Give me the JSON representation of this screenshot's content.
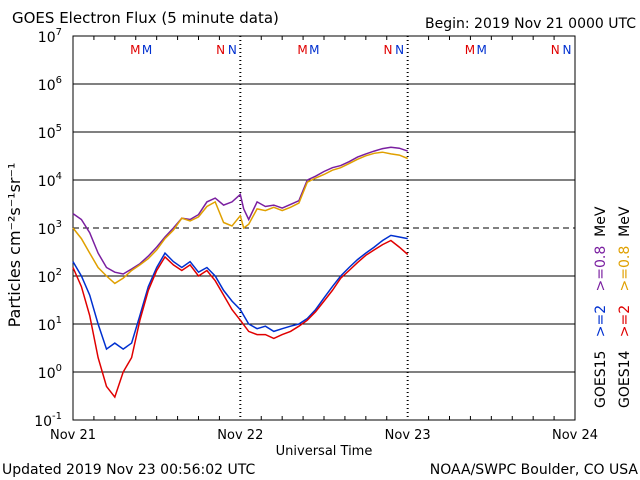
{
  "chart_data": {
    "type": "line",
    "title": "GOES Electron Flux (5 minute data)",
    "begin_label": "Begin: 2019 Nov 21 0000 UTC",
    "xlabel": "Universal Time",
    "ylabel": "Particles cm⁻²s⁻¹sr⁻¹",
    "y_scale": "log",
    "ylim": [
      0.1,
      10000000
    ],
    "y_ticks": [
      {
        "mant": "10",
        "exp": "7",
        "value": 10000000
      },
      {
        "mant": "10",
        "exp": "6",
        "value": 1000000
      },
      {
        "mant": "10",
        "exp": "5",
        "value": 100000
      },
      {
        "mant": "10",
        "exp": "4",
        "value": 10000
      },
      {
        "mant": "10",
        "exp": "3",
        "value": 1000
      },
      {
        "mant": "10",
        "exp": "2",
        "value": 100
      },
      {
        "mant": "10",
        "exp": "1",
        "value": 10
      },
      {
        "mant": "10",
        "exp": "0",
        "value": 1
      },
      {
        "mant": "10",
        "exp": "-1",
        "value": 0.1
      }
    ],
    "x_ticks": [
      {
        "label": "Nov 21",
        "day": 0
      },
      {
        "label": "Nov 22",
        "day": 1
      },
      {
        "label": "Nov 23",
        "day": 2
      },
      {
        "label": "Nov 24",
        "day": 3
      }
    ],
    "xlim": [
      0,
      3
    ],
    "threshold_lines": [
      {
        "value": 1000,
        "style": "dashed"
      }
    ],
    "markers": [
      {
        "text": "M",
        "day": 0.42,
        "color": "#e00000"
      },
      {
        "text": "M",
        "day": 0.49,
        "color": "#0030d0"
      },
      {
        "text": "N",
        "day": 0.93,
        "color": "#e00000"
      },
      {
        "text": "N",
        "day": 1.0,
        "color": "#0030d0"
      },
      {
        "text": "M",
        "day": 1.42,
        "color": "#e00000"
      },
      {
        "text": "M",
        "day": 1.49,
        "color": "#0030d0"
      },
      {
        "text": "N",
        "day": 1.93,
        "color": "#e00000"
      },
      {
        "text": "N",
        "day": 2.0,
        "color": "#0030d0"
      },
      {
        "text": "M",
        "day": 2.42,
        "color": "#e00000"
      },
      {
        "text": "M",
        "day": 2.49,
        "color": "#0030d0"
      },
      {
        "text": "N",
        "day": 2.93,
        "color": "#e00000"
      },
      {
        "text": "N",
        "day": 3.0,
        "color": "#0030d0"
      }
    ],
    "legend": {
      "placement": "right",
      "columns": [
        {
          "satellite": "GOES15",
          "low": {
            "text": ">=2",
            "color": "#0030d0"
          },
          "sep": "   ",
          "high": {
            "text": ">=0.8",
            "color": "#7a1fa0"
          },
          "unit": "MeV"
        },
        {
          "satellite": "GOES14",
          "low": {
            "text": ">=2",
            "color": "#e00000"
          },
          "sep": "   ",
          "high": {
            "text": ">=0.8",
            "color": "#e0a000"
          },
          "unit": "MeV"
        }
      ]
    },
    "series": [
      {
        "name": "GOES15 >=0.8 MeV",
        "color": "#7a1fa0",
        "x": [
          0,
          0.05,
          0.1,
          0.15,
          0.2,
          0.25,
          0.3,
          0.35,
          0.4,
          0.45,
          0.5,
          0.55,
          0.6,
          0.65,
          0.7,
          0.75,
          0.8,
          0.85,
          0.9,
          0.95,
          1.0,
          1.02,
          1.05,
          1.1,
          1.15,
          1.2,
          1.25,
          1.3,
          1.35,
          1.4,
          1.45,
          1.5,
          1.55,
          1.6,
          1.65,
          1.7,
          1.75,
          1.8,
          1.85,
          1.9,
          1.95,
          2.0
        ],
        "y": [
          2000,
          1500,
          800,
          300,
          150,
          120,
          110,
          140,
          180,
          260,
          400,
          650,
          1000,
          1600,
          1500,
          1900,
          3500,
          4200,
          3000,
          3500,
          5000,
          2500,
          1500,
          3500,
          2800,
          3000,
          2600,
          3100,
          3700,
          10000,
          12000,
          15000,
          18000,
          20000,
          24000,
          30000,
          35000,
          40000,
          45000,
          48000,
          46000,
          40000
        ]
      },
      {
        "name": "GOES14 >=0.8 MeV",
        "color": "#e0a000",
        "x": [
          0,
          0.05,
          0.1,
          0.15,
          0.2,
          0.25,
          0.3,
          0.35,
          0.4,
          0.45,
          0.5,
          0.55,
          0.6,
          0.65,
          0.7,
          0.75,
          0.8,
          0.85,
          0.9,
          0.95,
          1.0,
          1.02,
          1.05,
          1.1,
          1.15,
          1.2,
          1.25,
          1.3,
          1.35,
          1.4,
          1.45,
          1.5,
          1.55,
          1.6,
          1.65,
          1.7,
          1.75,
          1.8,
          1.85,
          1.9,
          1.95,
          2.0
        ],
        "y": [
          1000,
          600,
          300,
          150,
          100,
          70,
          90,
          130,
          170,
          230,
          350,
          600,
          900,
          1600,
          1400,
          1700,
          2800,
          3500,
          1300,
          1100,
          1800,
          1000,
          1200,
          2500,
          2300,
          2700,
          2300,
          2700,
          3300,
          9000,
          11000,
          13000,
          16000,
          18000,
          22000,
          27000,
          32000,
          36000,
          38000,
          35000,
          33000,
          28000
        ]
      },
      {
        "name": "GOES15 >=2 MeV",
        "color": "#0030d0",
        "x": [
          0,
          0.05,
          0.1,
          0.15,
          0.2,
          0.25,
          0.3,
          0.35,
          0.4,
          0.45,
          0.5,
          0.55,
          0.6,
          0.65,
          0.7,
          0.75,
          0.8,
          0.85,
          0.9,
          0.95,
          1.0,
          1.05,
          1.1,
          1.15,
          1.2,
          1.25,
          1.3,
          1.35,
          1.4,
          1.45,
          1.5,
          1.55,
          1.6,
          1.65,
          1.7,
          1.75,
          1.8,
          1.85,
          1.9,
          1.95,
          2.0
        ],
        "y": [
          200,
          100,
          40,
          10,
          3,
          4,
          3,
          4,
          15,
          60,
          150,
          300,
          200,
          150,
          200,
          120,
          150,
          100,
          50,
          30,
          20,
          10,
          8,
          9,
          7,
          8,
          9,
          10,
          13,
          20,
          35,
          60,
          100,
          150,
          220,
          300,
          400,
          550,
          700,
          650,
          600
        ]
      },
      {
        "name": "GOES14 >=2 MeV",
        "color": "#e00000",
        "x": [
          0,
          0.05,
          0.1,
          0.15,
          0.2,
          0.25,
          0.3,
          0.35,
          0.4,
          0.45,
          0.5,
          0.55,
          0.6,
          0.65,
          0.7,
          0.75,
          0.8,
          0.85,
          0.9,
          0.95,
          1.0,
          1.05,
          1.1,
          1.15,
          1.2,
          1.25,
          1.3,
          1.35,
          1.4,
          1.45,
          1.5,
          1.55,
          1.6,
          1.65,
          1.7,
          1.75,
          1.8,
          1.85,
          1.9,
          1.95,
          2.0
        ],
        "y": [
          150,
          60,
          15,
          2,
          0.5,
          0.3,
          1,
          2,
          12,
          50,
          130,
          250,
          170,
          130,
          170,
          100,
          130,
          80,
          40,
          20,
          12,
          7,
          6,
          6,
          5,
          6,
          7,
          9,
          12,
          18,
          30,
          50,
          90,
          130,
          190,
          270,
          350,
          450,
          550,
          400,
          280
        ]
      }
    ]
  },
  "footer": {
    "updated": "Updated 2019 Nov 23 00:56:02 UTC",
    "credit": "NOAA/SWPC Boulder, CO USA"
  }
}
